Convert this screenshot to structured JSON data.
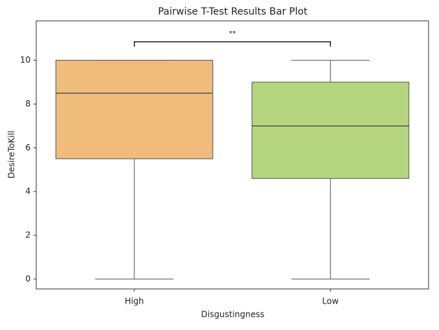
{
  "chart_data": {
    "type": "box",
    "title": "Pairwise T-Test Results Bar Plot",
    "x_label": "Disgustingness",
    "y_label": "DesireToKill",
    "categories": [
      "High",
      "Low"
    ],
    "boxes": [
      {
        "min": 0,
        "q1": 5.5,
        "median": 8.5,
        "q3": 10,
        "max": 10,
        "color": "#f0bc7c"
      },
      {
        "min": 0,
        "q1": 4.6,
        "median": 7,
        "q3": 9,
        "max": 10,
        "color": "#b5d67f"
      }
    ],
    "ylim": [
      -0.45,
      11.8
    ],
    "yticks": [
      0,
      2,
      4,
      6,
      8,
      10
    ],
    "annotation": "**"
  }
}
